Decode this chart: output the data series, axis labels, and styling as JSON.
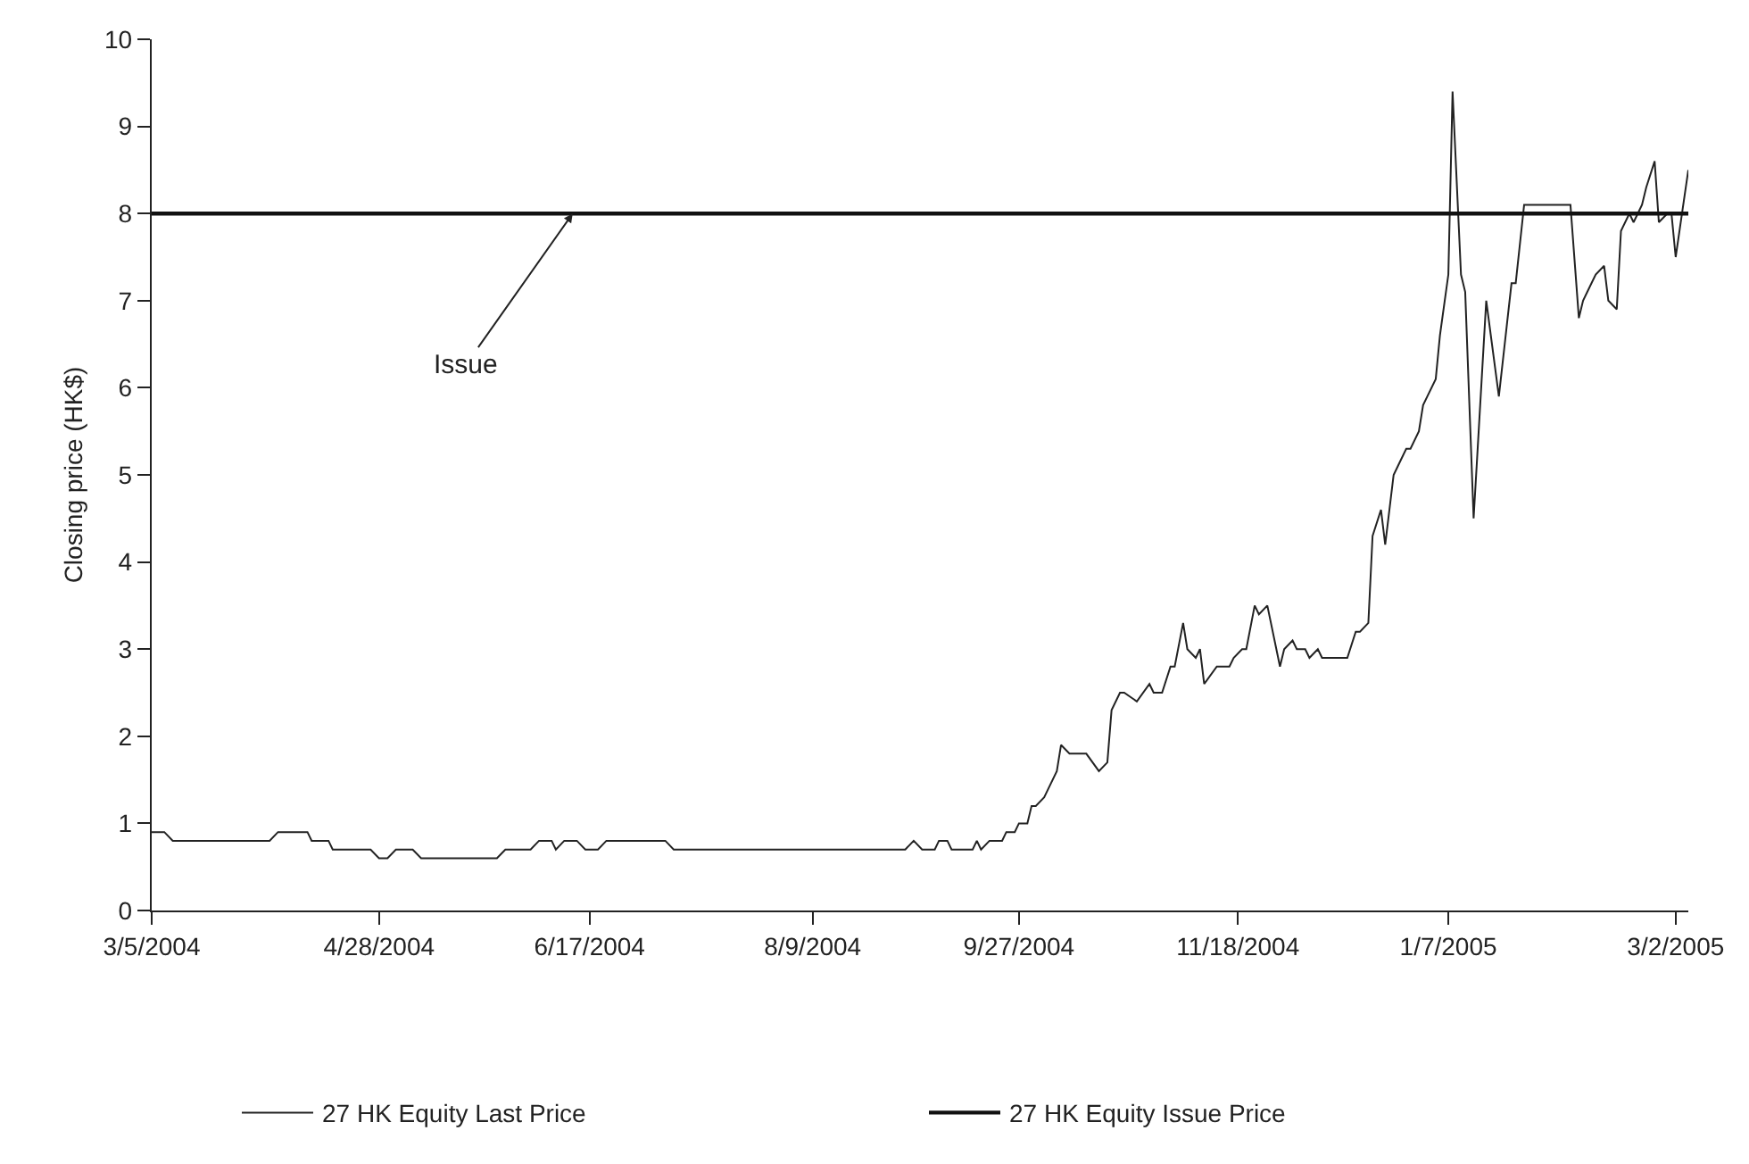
{
  "chart_data": {
    "type": "line",
    "ylabel": "Closing price (HK$)",
    "xlim": [
      "2004-03-05",
      "2005-03-05"
    ],
    "ylim": [
      0,
      10
    ],
    "yticks": [
      0,
      1,
      2,
      3,
      4,
      5,
      6,
      7,
      8,
      9,
      10
    ],
    "xticks": [
      {
        "value": "2004-03-05",
        "label": "3/5/2004"
      },
      {
        "value": "2004-04-28",
        "label": "4/28/2004"
      },
      {
        "value": "2004-06-17",
        "label": "6/17/2004"
      },
      {
        "value": "2004-08-09",
        "label": "8/9/2004"
      },
      {
        "value": "2004-09-27",
        "label": "9/27/2004"
      },
      {
        "value": "2004-11-18",
        "label": "11/18/2004"
      },
      {
        "value": "2005-01-07",
        "label": "1/7/2005"
      },
      {
        "value": "2005-03-02",
        "label": "3/2/2005"
      }
    ],
    "grid": false,
    "legend": "bottom",
    "marker": "none",
    "line_style": "solid",
    "annotations": [
      {
        "text": "Issue",
        "x": "2004-06-13",
        "y": 8
      }
    ],
    "series": [
      {
        "name": "27 HK Equity Last Price",
        "color": "#222222",
        "x": [
          "2004-03-05",
          "2004-03-08",
          "2004-03-10",
          "2004-04-02",
          "2004-04-04",
          "2004-04-11",
          "2004-04-12",
          "2004-04-16",
          "2004-04-17",
          "2004-04-26",
          "2004-04-28",
          "2004-04-30",
          "2004-05-02",
          "2004-05-06",
          "2004-05-08",
          "2004-05-26",
          "2004-05-28",
          "2004-06-03",
          "2004-06-05",
          "2004-06-08",
          "2004-06-09",
          "2004-06-11",
          "2004-06-14",
          "2004-06-16",
          "2004-06-19",
          "2004-06-21",
          "2004-07-05",
          "2004-07-07",
          "2004-08-31",
          "2004-09-02",
          "2004-09-04",
          "2004-09-07",
          "2004-09-08",
          "2004-09-10",
          "2004-09-11",
          "2004-09-16",
          "2004-09-17",
          "2004-09-18",
          "2004-09-20",
          "2004-09-23",
          "2004-09-24",
          "2004-09-26",
          "2004-09-27",
          "2004-09-29",
          "2004-09-30",
          "2004-10-01",
          "2004-10-03",
          "2004-10-04",
          "2004-10-06",
          "2004-10-07",
          "2004-10-09",
          "2004-10-13",
          "2004-10-16",
          "2004-10-18",
          "2004-10-19",
          "2004-10-21",
          "2004-10-22",
          "2004-10-25",
          "2004-10-28",
          "2004-10-29",
          "2004-10-31",
          "2004-11-02",
          "2004-11-03",
          "2004-11-05",
          "2004-11-06",
          "2004-11-08",
          "2004-11-09",
          "2004-11-10",
          "2004-11-13",
          "2004-11-16",
          "2004-11-17",
          "2004-11-19",
          "2004-11-20",
          "2004-11-22",
          "2004-11-23",
          "2004-11-25",
          "2004-11-28",
          "2004-11-29",
          "2004-12-01",
          "2004-12-02",
          "2004-12-04",
          "2004-12-05",
          "2004-12-07",
          "2004-12-08",
          "2004-12-14",
          "2004-12-16",
          "2004-12-17",
          "2004-12-19",
          "2004-12-20",
          "2004-12-22",
          "2004-12-23",
          "2004-12-25",
          "2004-12-26",
          "2004-12-28",
          "2004-12-29",
          "2004-12-31",
          "2005-01-01",
          "2005-01-02",
          "2005-01-04",
          "2005-01-05",
          "2005-01-07",
          "2005-01-08",
          "2005-01-10",
          "2005-01-11",
          "2005-01-13",
          "2005-01-16",
          "2005-01-19",
          "2005-01-22",
          "2005-01-23",
          "2005-01-25",
          "2005-02-05",
          "2005-02-07",
          "2005-02-08",
          "2005-02-09",
          "2005-02-11",
          "2005-02-13",
          "2005-02-14",
          "2005-02-16",
          "2005-02-17",
          "2005-02-19",
          "2005-02-20",
          "2005-02-22",
          "2005-02-23",
          "2005-02-25",
          "2005-02-26",
          "2005-02-28",
          "2005-03-01",
          "2005-03-02",
          "2005-03-05"
        ],
        "values": [
          0.9,
          0.9,
          0.8,
          0.8,
          0.9,
          0.9,
          0.8,
          0.8,
          0.7,
          0.7,
          0.6,
          0.6,
          0.7,
          0.7,
          0.6,
          0.6,
          0.7,
          0.7,
          0.8,
          0.8,
          0.7,
          0.8,
          0.8,
          0.7,
          0.7,
          0.8,
          0.8,
          0.7,
          0.7,
          0.8,
          0.7,
          0.7,
          0.8,
          0.8,
          0.7,
          0.7,
          0.8,
          0.7,
          0.8,
          0.8,
          0.9,
          0.9,
          1.0,
          1.0,
          1.2,
          1.2,
          1.3,
          1.4,
          1.6,
          1.9,
          1.8,
          1.8,
          1.6,
          1.7,
          2.3,
          2.5,
          2.5,
          2.4,
          2.6,
          2.5,
          2.5,
          2.8,
          2.8,
          3.3,
          3.0,
          2.9,
          3.0,
          2.6,
          2.8,
          2.8,
          2.9,
          3.0,
          3.0,
          3.5,
          3.4,
          3.5,
          2.8,
          3.0,
          3.1,
          3.0,
          3.0,
          2.9,
          3.0,
          2.9,
          2.9,
          3.2,
          3.2,
          3.3,
          4.3,
          4.6,
          4.2,
          5.0,
          5.1,
          5.3,
          5.3,
          5.5,
          5.8,
          5.9,
          6.1,
          6.6,
          7.3,
          9.4,
          7.3,
          7.1,
          4.5,
          7.0,
          5.9,
          7.2,
          7.2,
          8.1,
          8.1,
          6.8,
          7.0,
          7.1,
          7.3,
          7.4,
          7.0,
          6.9,
          7.8,
          8.0,
          7.9,
          8.1,
          8.3,
          8.6,
          7.9,
          8.0,
          8.0,
          7.5,
          8.5
        ]
      },
      {
        "name": "27 HK Equity Issue Price",
        "color": "#111111",
        "x": [
          "2004-03-05",
          "2005-03-05"
        ],
        "values": [
          8,
          8
        ]
      }
    ]
  }
}
